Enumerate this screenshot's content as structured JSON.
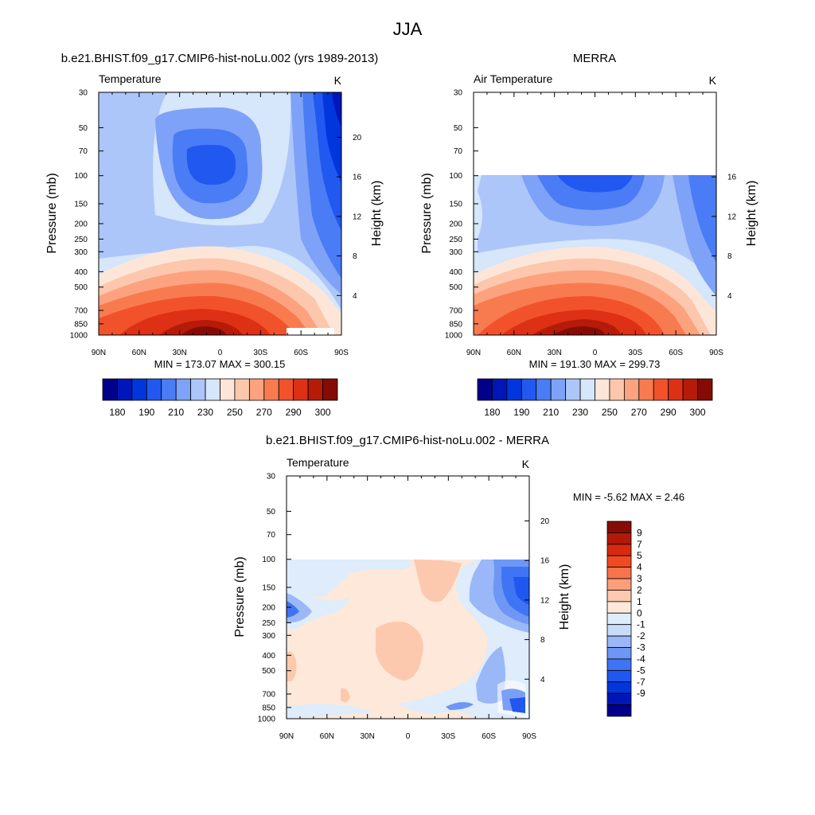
{
  "figure": {
    "title": "JJA"
  },
  "colors": {
    "abs_palette": [
      "#00008a",
      "#0016b8",
      "#0036dc",
      "#2158f0",
      "#4a7cf5",
      "#7ea2f7",
      "#adc6f9",
      "#d6e6fb",
      "#fde6d8",
      "#fcc7ad",
      "#fca27f",
      "#f87b50",
      "#f2522b",
      "#de3014",
      "#b61a09",
      "#860b05"
    ],
    "diff_palette": [
      "#00008a",
      "#0016b8",
      "#0036dc",
      "#1f57ef",
      "#3f74f4",
      "#6d96f5",
      "#9ab7f7",
      "#c9ddf9",
      "#deecfc",
      "#fde8da",
      "#fcc9ae",
      "#fb9f7b",
      "#f8744b",
      "#f04a23",
      "#d72a0f",
      "#b11a08",
      "#870b05"
    ]
  },
  "panels": {
    "model": {
      "title": "b.e21.BHIST.f09_g17.CMIP6-hist-noLu.002 (yrs 1989-2013)",
      "left_label": "Temperature",
      "units": "K",
      "ylabel": "Pressure (mb)",
      "ylabel_right": "Height (km)",
      "minmax": "MIN = 173.07  MAX = 300.15"
    },
    "obs": {
      "title": "MERRA",
      "left_label": "Air Temperature",
      "units": "K",
      "ylabel": "Pressure (mb)",
      "ylabel_right": "Height (km)",
      "minmax": "MIN = 191.30  MAX = 299.73"
    },
    "diff": {
      "title": "b.e21.BHIST.f09_g17.CMIP6-hist-noLu.002 - MERRA",
      "left_label": "Temperature",
      "units": "K",
      "ylabel": "Pressure (mb)",
      "ylabel_right": "Height (km)",
      "minmax": "MIN =  -5.62  MAX =   2.46"
    }
  },
  "chart_data": [
    {
      "type": "heatmap",
      "title": "b.e21.BHIST.f09_g17.CMIP6-hist-noLu.002 (yrs 1989-2013)",
      "x_ticks": [
        "90N",
        "60N",
        "30N",
        "0",
        "30S",
        "60S",
        "90S"
      ],
      "y_ticks": [
        30,
        50,
        70,
        100,
        150,
        200,
        250,
        300,
        400,
        500,
        700,
        850,
        1000
      ],
      "height_ticks": [
        4,
        8,
        12,
        16,
        20
      ],
      "ylim": [
        1000,
        30
      ],
      "colorbar_labels": [
        "180",
        "190",
        "210",
        "230",
        "250",
        "270",
        "290",
        "300"
      ],
      "min": 173.07,
      "max": 300.15
    },
    {
      "type": "heatmap",
      "title": "MERRA",
      "x_ticks": [
        "90N",
        "60N",
        "30N",
        "0",
        "30S",
        "60S",
        "90S"
      ],
      "y_ticks": [
        30,
        50,
        70,
        100,
        150,
        200,
        250,
        300,
        400,
        500,
        700,
        850,
        1000
      ],
      "height_ticks": [
        4,
        8,
        12,
        16
      ],
      "ylim": [
        1000,
        30
      ],
      "colorbar_labels": [
        "180",
        "190",
        "210",
        "230",
        "250",
        "270",
        "290",
        "300"
      ],
      "min": 191.3,
      "max": 299.73
    },
    {
      "type": "heatmap",
      "title": "b.e21.BHIST.f09_g17.CMIP6-hist-noLu.002 - MERRA",
      "x_ticks": [
        "90N",
        "60N",
        "30N",
        "0",
        "30S",
        "60S",
        "90S"
      ],
      "y_ticks": [
        30,
        50,
        70,
        100,
        150,
        200,
        250,
        300,
        400,
        500,
        700,
        850,
        1000
      ],
      "height_ticks": [
        4,
        8,
        12,
        16,
        20
      ],
      "ylim": [
        1000,
        30
      ],
      "colorbar_labels": [
        "9",
        "7",
        "5",
        "4",
        "3",
        "2",
        "1",
        "0",
        "-1",
        "-2",
        "-3",
        "-4",
        "-5",
        "-7",
        "-9"
      ],
      "min": -5.62,
      "max": 2.46
    }
  ]
}
